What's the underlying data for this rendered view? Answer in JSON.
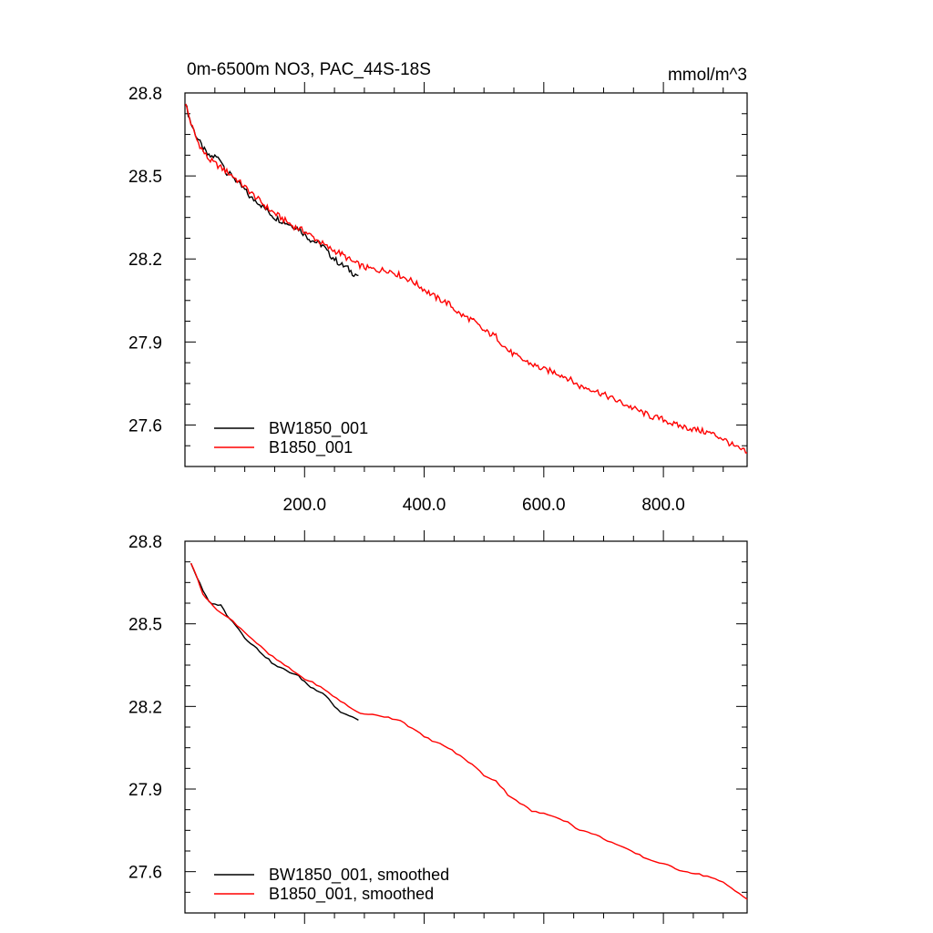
{
  "chart_data": [
    {
      "type": "line",
      "title": "0m-6500m NO3, PAC_44S-18S",
      "units": "mmol/m^3",
      "xlim": [
        0,
        940
      ],
      "ylim": [
        27.45,
        28.8
      ],
      "x_ticks": [
        200,
        400,
        600,
        800
      ],
      "x_tick_labels": [
        "200.0",
        "400.0",
        "600.0",
        "800.0"
      ],
      "y_ticks": [
        27.6,
        27.9,
        28.2,
        28.5,
        28.8
      ],
      "y_tick_labels": [
        "27.6",
        "27.9",
        "28.2",
        "28.5",
        "28.8"
      ],
      "grid": false,
      "legend_position": "bottom-left",
      "series": [
        {
          "name": "BW1850_001",
          "color": "#000000",
          "x": [
            1,
            10,
            20,
            30,
            40,
            50,
            60,
            70,
            80,
            90,
            100,
            110,
            120,
            130,
            140,
            150,
            160,
            170,
            180,
            190,
            200,
            210,
            220,
            230,
            240,
            250,
            260,
            270,
            280,
            290
          ],
          "y": [
            28.76,
            28.69,
            28.64,
            28.6,
            28.57,
            28.57,
            28.56,
            28.51,
            28.5,
            28.47,
            28.45,
            28.42,
            28.41,
            28.39,
            28.37,
            28.35,
            28.34,
            28.33,
            28.32,
            28.31,
            28.29,
            28.27,
            28.26,
            28.25,
            28.22,
            28.2,
            28.18,
            28.17,
            28.15,
            28.14
          ]
        },
        {
          "name": "B1850_001",
          "color": "#ff0000",
          "x": [
            1,
            10,
            20,
            30,
            40,
            60,
            80,
            100,
            120,
            140,
            160,
            180,
            200,
            220,
            240,
            260,
            280,
            300,
            320,
            340,
            360,
            380,
            400,
            420,
            440,
            460,
            480,
            500,
            520,
            540,
            560,
            580,
            600,
            620,
            640,
            660,
            680,
            700,
            720,
            740,
            760,
            780,
            800,
            820,
            840,
            860,
            880,
            900,
            920,
            940
          ],
          "y": [
            28.76,
            28.69,
            28.63,
            28.59,
            28.56,
            28.53,
            28.5,
            28.46,
            28.42,
            28.38,
            28.35,
            28.32,
            28.3,
            28.27,
            28.24,
            28.22,
            28.19,
            28.17,
            28.16,
            28.16,
            28.14,
            28.12,
            28.09,
            28.06,
            28.04,
            28.0,
            27.98,
            27.94,
            27.92,
            27.87,
            27.84,
            27.82,
            27.8,
            27.79,
            27.77,
            27.74,
            27.73,
            27.71,
            27.69,
            27.67,
            27.65,
            27.63,
            27.62,
            27.6,
            27.59,
            27.58,
            27.57,
            27.55,
            27.52,
            27.5
          ]
        }
      ]
    },
    {
      "type": "line",
      "xlim": [
        0,
        940
      ],
      "ylim": [
        27.45,
        28.8
      ],
      "y_ticks": [
        27.6,
        27.9,
        28.2,
        28.5,
        28.8
      ],
      "y_tick_labels": [
        "27.6",
        "27.9",
        "28.2",
        "28.5",
        "28.8"
      ],
      "grid": false,
      "legend_position": "bottom-left",
      "series": [
        {
          "name": "BW1850_001, smoothed",
          "color": "#000000",
          "x": [
            10,
            20,
            30,
            40,
            50,
            60,
            70,
            80,
            90,
            100,
            110,
            120,
            130,
            140,
            150,
            160,
            170,
            180,
            190,
            200,
            210,
            220,
            230,
            240,
            250,
            260,
            270,
            280,
            290
          ],
          "y": [
            28.72,
            28.67,
            28.62,
            28.58,
            28.57,
            28.57,
            28.53,
            28.51,
            28.48,
            28.45,
            28.43,
            28.41,
            28.39,
            28.37,
            28.35,
            28.34,
            28.33,
            28.32,
            28.31,
            28.29,
            28.27,
            28.26,
            28.25,
            28.23,
            28.2,
            28.18,
            28.17,
            28.16,
            28.15
          ]
        },
        {
          "name": "B1850_001, smoothed",
          "color": "#ff0000",
          "x": [
            10,
            20,
            30,
            40,
            60,
            80,
            100,
            120,
            140,
            160,
            180,
            200,
            220,
            240,
            260,
            280,
            300,
            320,
            340,
            360,
            380,
            400,
            420,
            440,
            460,
            480,
            500,
            520,
            540,
            560,
            580,
            600,
            620,
            640,
            660,
            680,
            700,
            720,
            740,
            760,
            780,
            800,
            820,
            840,
            860,
            880,
            900,
            920,
            940
          ],
          "y": [
            28.72,
            28.67,
            28.61,
            28.58,
            28.54,
            28.51,
            28.47,
            28.43,
            28.39,
            28.36,
            28.33,
            28.3,
            28.28,
            28.25,
            28.22,
            28.19,
            28.17,
            28.17,
            28.16,
            28.15,
            28.12,
            28.09,
            28.07,
            28.05,
            28.02,
            27.99,
            27.95,
            27.93,
            27.88,
            27.85,
            27.82,
            27.81,
            27.8,
            27.78,
            27.75,
            27.74,
            27.72,
            27.7,
            27.68,
            27.66,
            27.64,
            27.63,
            27.61,
            27.6,
            27.59,
            27.58,
            27.56,
            27.53,
            27.5
          ]
        }
      ]
    }
  ]
}
